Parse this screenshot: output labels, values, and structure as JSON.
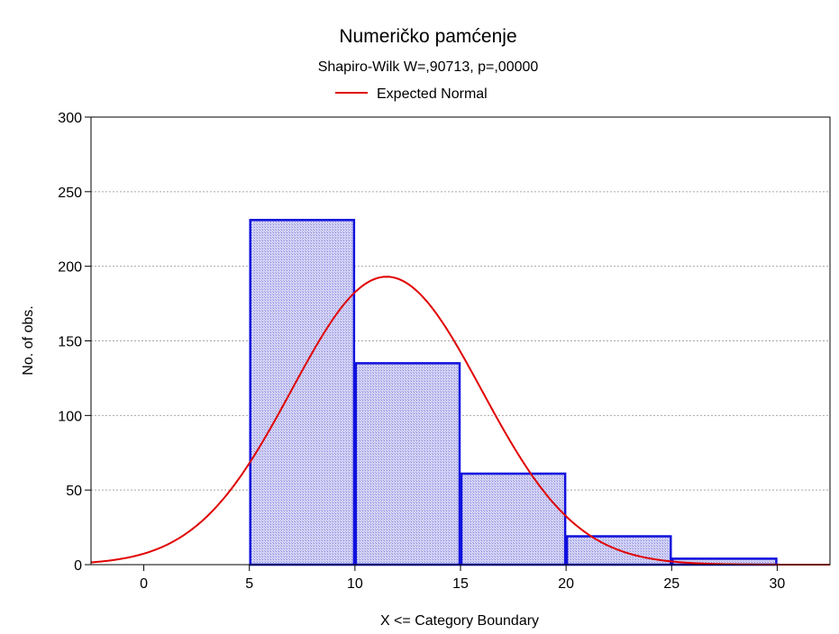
{
  "chart_data": {
    "type": "bar",
    "title": "Numeričko pamćenje",
    "subtitle": "Shapiro-Wilk W=,90713, p=,00000",
    "xlabel": "X <= Category Boundary",
    "ylabel": "No. of obs.",
    "xlim": [
      -2.5,
      32.5
    ],
    "ylim": [
      0,
      300
    ],
    "x_ticks": [
      0,
      5,
      10,
      15,
      20,
      25,
      30
    ],
    "y_ticks": [
      0,
      50,
      100,
      150,
      200,
      250,
      300
    ],
    "grid": true,
    "legend": {
      "position": "top-center",
      "entries": [
        {
          "label": "Expected Normal",
          "color": "#e00000"
        }
      ]
    },
    "series": [
      {
        "type": "histogram",
        "bins": [
          {
            "from": 5,
            "to": 10,
            "value": 231
          },
          {
            "from": 10,
            "to": 15,
            "value": 135
          },
          {
            "from": 15,
            "to": 20,
            "value": 61
          },
          {
            "from": 20,
            "to": 25,
            "value": 19
          },
          {
            "from": 25,
            "to": 30,
            "value": 4
          }
        ],
        "fill_color": "#c6c6ee",
        "edge_color": "#1010dd"
      },
      {
        "type": "line",
        "name": "Expected Normal",
        "color": "#e00000",
        "distribution": {
          "mean": 11.5,
          "peak": 193,
          "sd": 4.5
        }
      }
    ]
  }
}
